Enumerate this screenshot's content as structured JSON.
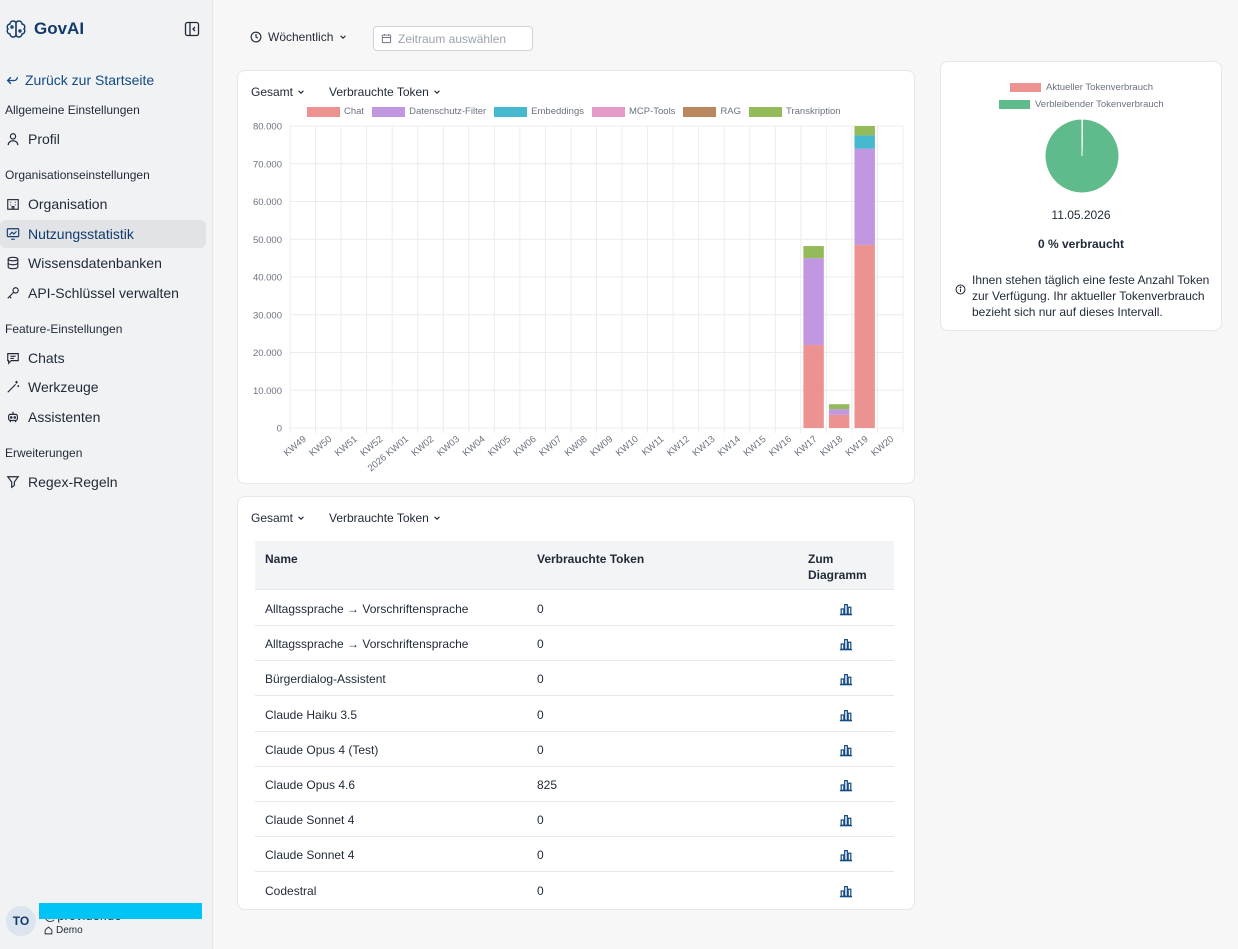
{
  "app": {
    "name": "GovAI"
  },
  "sidebar": {
    "back_label": "Zurück zur Startseite",
    "sections": {
      "general": "Allgemeine Einstellungen",
      "organization": "Organisationseinstellungen",
      "features": "Feature-Einstellungen",
      "extensions": "Erweiterungen"
    },
    "items": [
      {
        "label": "Profil",
        "icon": "user-icon"
      },
      {
        "label": "Organisation",
        "icon": "building-icon"
      },
      {
        "label": "Nutzungsstatistik",
        "icon": "monitor-chart-icon",
        "active": true
      },
      {
        "label": "Wissensdatenbanken",
        "icon": "database-icon"
      },
      {
        "label": "API-Schlüssel verwalten",
        "icon": "key-icon"
      },
      {
        "label": "Chats",
        "icon": "chat-icon"
      },
      {
        "label": "Werkzeuge",
        "icon": "wand-icon"
      },
      {
        "label": "Assistenten",
        "icon": "bot-icon"
      },
      {
        "label": "Regex-Regeln",
        "icon": "regex-icon"
      }
    ],
    "user": {
      "initials": "TO",
      "name": "@provider.de",
      "org": "Demo"
    }
  },
  "toolbar": {
    "interval": "Wöchentlich",
    "date_placeholder": "Zeitraum auswählen"
  },
  "chart_card": {
    "scope": "Gesamt",
    "metric": "Verbrauchte Token"
  },
  "chart_data": {
    "type": "bar",
    "stacked": true,
    "categories": [
      "KW49",
      "KW50",
      "KW51",
      "KW52",
      "2026 KW01",
      "KW02",
      "KW03",
      "KW04",
      "KW05",
      "KW06",
      "KW07",
      "KW08",
      "KW09",
      "KW10",
      "KW11",
      "KW12",
      "KW13",
      "KW14",
      "KW15",
      "KW16",
      "KW17",
      "KW18",
      "KW19",
      "KW20"
    ],
    "ylim": [
      0,
      80000
    ],
    "yticks": [
      0,
      10000,
      20000,
      30000,
      40000,
      50000,
      60000,
      70000,
      80000
    ],
    "ytick_labels": [
      "0",
      "10.000",
      "20.000",
      "30.000",
      "40.000",
      "50.000",
      "60.000",
      "70.000",
      "80.000"
    ],
    "grid": true,
    "legend_position": "top",
    "series": [
      {
        "name": "Chat",
        "color": "#ec9391",
        "values": [
          0,
          0,
          0,
          0,
          0,
          0,
          0,
          0,
          0,
          0,
          0,
          0,
          0,
          0,
          0,
          0,
          0,
          0,
          0,
          0,
          22000,
          3500,
          48500,
          0
        ]
      },
      {
        "name": "Datenschutz-Filter",
        "color": "#c097e0",
        "values": [
          0,
          0,
          0,
          0,
          0,
          0,
          0,
          0,
          0,
          0,
          0,
          0,
          0,
          0,
          0,
          0,
          0,
          0,
          0,
          0,
          23000,
          1500,
          25500,
          0
        ]
      },
      {
        "name": "Embeddings",
        "color": "#46b8cf",
        "values": [
          0,
          0,
          0,
          0,
          0,
          0,
          0,
          0,
          0,
          0,
          0,
          0,
          0,
          0,
          0,
          0,
          0,
          0,
          0,
          0,
          0,
          0,
          3500,
          0
        ]
      },
      {
        "name": "MCP-Tools",
        "color": "#e29ac9",
        "values": [
          0,
          0,
          0,
          0,
          0,
          0,
          0,
          0,
          0,
          0,
          0,
          0,
          0,
          0,
          0,
          0,
          0,
          0,
          0,
          0,
          0,
          0,
          0,
          0
        ]
      },
      {
        "name": "RAG",
        "color": "#b98760",
        "values": [
          0,
          0,
          0,
          0,
          0,
          0,
          0,
          0,
          0,
          0,
          0,
          0,
          0,
          0,
          0,
          0,
          0,
          0,
          0,
          0,
          0,
          0,
          0,
          0
        ]
      },
      {
        "name": "Transkription",
        "color": "#94bb5a",
        "values": [
          0,
          0,
          0,
          0,
          0,
          0,
          0,
          0,
          0,
          0,
          0,
          0,
          0,
          0,
          0,
          0,
          0,
          0,
          0,
          0,
          3200,
          1300,
          2500,
          0
        ]
      }
    ]
  },
  "gauge": {
    "legend": [
      {
        "label": "Aktueller Tokenverbrauch",
        "color": "#ec9391"
      },
      {
        "label": "Verbleibender Tokenverbrauch",
        "color": "#5fbb8b"
      }
    ],
    "used_fraction": 0.002,
    "date": "11.05.2026",
    "percent_label": "0 % verbraucht",
    "info": "Ihnen stehen täglich eine feste Anzahl Token zur Verfügung. Ihr aktueller Tokenverbrauch bezieht sich nur auf dieses Intervall."
  },
  "table_card": {
    "scope": "Gesamt",
    "metric": "Verbrauchte Token",
    "columns": {
      "name": "Name",
      "tokens": "Verbrauchte Token",
      "chart_line1": "Zum",
      "chart_line2": "Diagramm"
    },
    "rows": [
      {
        "name": "Alltagssprache → Vorschriftensprache",
        "tokens": "0"
      },
      {
        "name": "Alltagssprache → Vorschriftensprache",
        "tokens": "0"
      },
      {
        "name": "Bürgerdialog-Assistent",
        "tokens": "0"
      },
      {
        "name": "Claude Haiku 3.5",
        "tokens": "0"
      },
      {
        "name": "Claude Opus 4 (Test)",
        "tokens": "0"
      },
      {
        "name": "Claude Opus 4.6",
        "tokens": "825"
      },
      {
        "name": "Claude Sonnet 4",
        "tokens": "0"
      },
      {
        "name": "Claude Sonnet 4",
        "tokens": "0"
      },
      {
        "name": "Codestral",
        "tokens": "0"
      }
    ]
  }
}
